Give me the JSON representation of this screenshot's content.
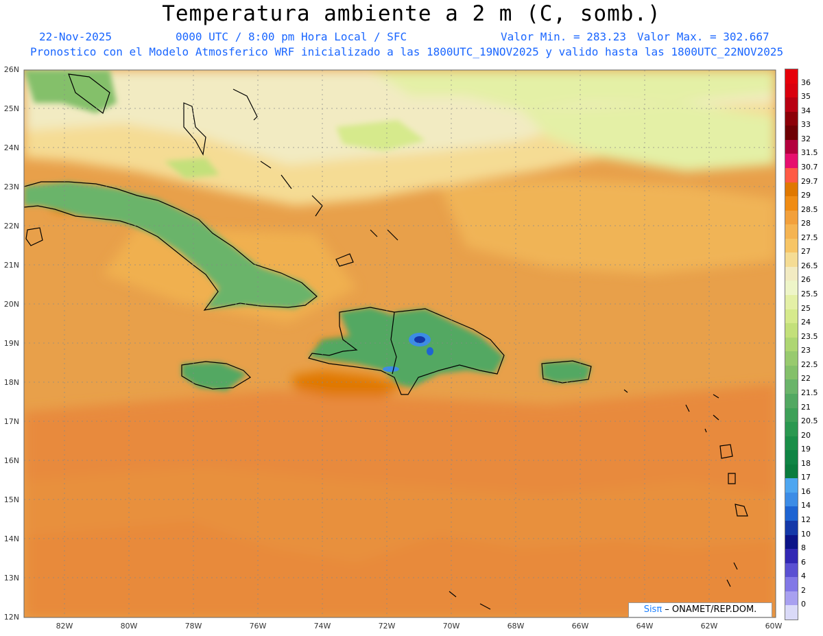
{
  "header": {
    "title": "Temperatura ambiente a 2 m (C, somb.)",
    "date": "22-Nov-2025",
    "time": "0000 UTC / 8:00 pm Hora Local / SFC",
    "min": "Valor Min. = 283.23",
    "max": "Valor Max. = 302.667",
    "subtitle": "Pronostico con el Modelo Atmosferico WRF inicializado a las 1800UTC_19NOV2025 y valido hasta las  1800UTC_22NOV2025"
  },
  "lat_labels": [
    "26N",
    "25N",
    "24N",
    "23N",
    "22N",
    "21N",
    "20N",
    "19N",
    "18N",
    "17N",
    "16N",
    "15N",
    "14N",
    "13N",
    "12N"
  ],
  "lon_labels": [
    "82W",
    "80W",
    "78W",
    "76W",
    "74W",
    "72W",
    "70W",
    "68W",
    "66W",
    "64W",
    "62W",
    "60W"
  ],
  "colorbar": {
    "labels": [
      "36",
      "35",
      "34",
      "33",
      "32",
      "31.5",
      "30.7",
      "29.7",
      "29",
      "28.5",
      "28",
      "27.5",
      "27",
      "26.5",
      "26",
      "25.5",
      "25",
      "24",
      "23.5",
      "23",
      "22.5",
      "22",
      "21.5",
      "21",
      "20.5",
      "20",
      "19",
      "18",
      "17",
      "16",
      "14",
      "12",
      "10",
      "8",
      "6",
      "4",
      "2",
      "0"
    ],
    "colors": [
      "#e6000a",
      "#d9000e",
      "#b80012",
      "#8c0008",
      "#6e0004",
      "#b3003d",
      "#e60f6e",
      "#ff5a45",
      "#e07800",
      "#f08c14",
      "#f2a03c",
      "#f5b452",
      "#f7c566",
      "#f5dc94",
      "#f2ebc2",
      "#eef5c8",
      "#e4f0a6",
      "#d6ea8c",
      "#c3e07a",
      "#aed672",
      "#98ca6e",
      "#84c06a",
      "#6ab46a",
      "#52a862",
      "#3ea058",
      "#2a9850",
      "#1a8e48",
      "#0f8444",
      "#0a7c3e",
      "#4ea6f0",
      "#3c8ce6",
      "#1e64d2",
      "#1438a8",
      "#0c1488",
      "#3228b4",
      "#5a50d2",
      "#8278e6",
      "#a8a0f0",
      "#dadaf8"
    ]
  },
  "credit": {
    "brand": "Sisπ",
    "text": " – ONAMET/REP.DOM."
  }
}
